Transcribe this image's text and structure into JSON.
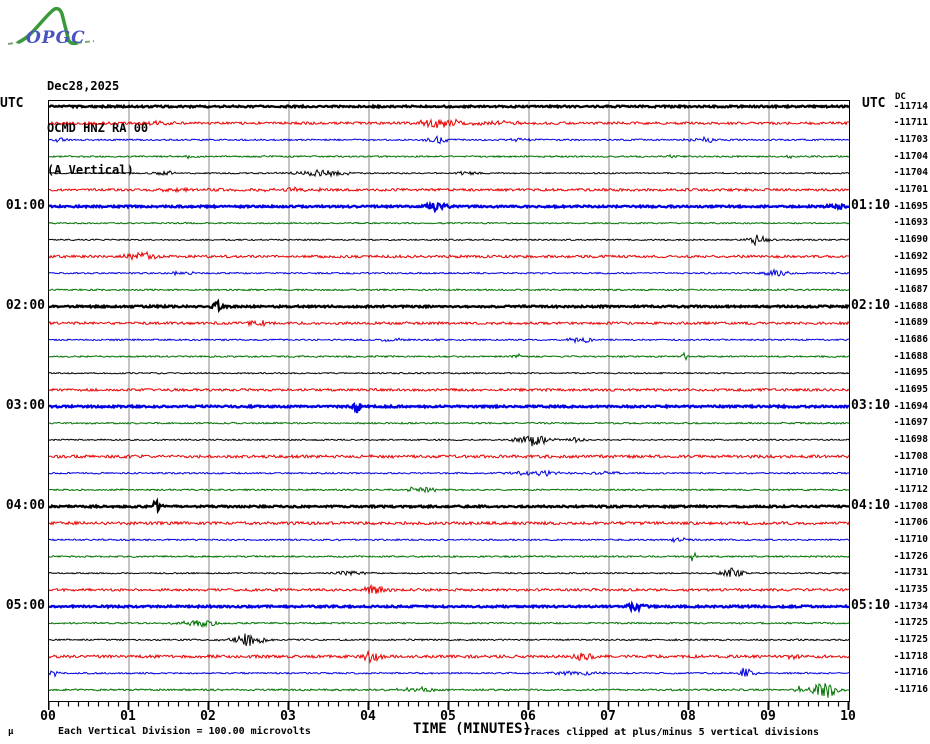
{
  "logo": {
    "text": "OPGC",
    "curve_color": "#3a9a3a",
    "text_color": "#4a52c0"
  },
  "header": {
    "date": "Dec28,2025",
    "station": "OCMD HNZ RA 00",
    "component": "(A Vertical)"
  },
  "labels": {
    "utc_left": "UTC",
    "utc_right": "UTC",
    "dc": "DC"
  },
  "footer": {
    "xlabel": "TIME (MINUTES)",
    "scale_note": "Each Vertical Division =  100.00 microvolts",
    "clip_note": "Traces clipped at plus/minus 5 vertical divisions",
    "mu": "μ"
  },
  "chart_data": {
    "type": "line",
    "title": "OPGC helicorder - OCMD HNZ RA 00 (A Vertical) Dec28,2025",
    "xlabel": "TIME (MINUTES)",
    "x_range": [
      0,
      10
    ],
    "x_tick_labels": [
      "00",
      "01",
      "02",
      "03",
      "04",
      "05",
      "06",
      "07",
      "08",
      "09",
      "10"
    ],
    "minutes_per_row": 10,
    "grid_color": "#878787",
    "palette": {
      "black": "#000000",
      "red": "#e80000",
      "blue": "#0000e0",
      "green": "#007200"
    },
    "rows": [
      {
        "utc": "",
        "utc_right": "",
        "color": "black",
        "dc": -11714,
        "bold": true,
        "noise": 0.9,
        "events": []
      },
      {
        "utc": "",
        "utc_right": "",
        "color": "red",
        "dc": -11711,
        "bold": false,
        "noise": 1.3,
        "events": [
          [
            1.35,
            2,
            0.3
          ],
          [
            4.9,
            5,
            0.35
          ],
          [
            5.6,
            2,
            0.5
          ]
        ]
      },
      {
        "utc": "",
        "utc_right": "",
        "color": "blue",
        "dc": -11703,
        "bold": false,
        "noise": 0.8,
        "events": [
          [
            0.15,
            2,
            0.12
          ],
          [
            4.85,
            4,
            0.2
          ],
          [
            5.9,
            1.5,
            0.3
          ],
          [
            8.2,
            2.5,
            0.25
          ]
        ]
      },
      {
        "utc": "",
        "utc_right": "",
        "color": "green",
        "dc": -11704,
        "bold": false,
        "noise": 0.8,
        "events": [
          [
            1.75,
            1.5,
            0.15
          ],
          [
            7.8,
            2,
            0.08
          ],
          [
            9.25,
            2,
            0.08
          ]
        ]
      },
      {
        "utc": "",
        "utc_right": "",
        "color": "black",
        "dc": -11704,
        "bold": false,
        "noise": 0.7,
        "events": [
          [
            1.45,
            2,
            0.2
          ],
          [
            3.4,
            3,
            0.5
          ],
          [
            5.2,
            1.5,
            0.3
          ]
        ]
      },
      {
        "utc": "",
        "utc_right": "",
        "color": "red",
        "dc": -11701,
        "bold": false,
        "noise": 1.3,
        "events": [
          [
            1.7,
            1.5,
            0.4
          ],
          [
            3.0,
            1.5,
            0.6
          ]
        ]
      },
      {
        "utc": "01:00",
        "utc_right": "01:10",
        "color": "blue",
        "dc": -11695,
        "bold": true,
        "noise": 0.9,
        "events": [
          [
            4.85,
            4,
            0.18
          ],
          [
            9.85,
            3.5,
            0.15
          ]
        ]
      },
      {
        "utc": "",
        "utc_right": "",
        "color": "green",
        "dc": -11693,
        "bold": false,
        "noise": 0.7,
        "events": []
      },
      {
        "utc": "",
        "utc_right": "",
        "color": "black",
        "dc": -11690,
        "bold": false,
        "noise": 0.7,
        "events": [
          [
            8.85,
            5,
            0.2
          ]
        ]
      },
      {
        "utc": "",
        "utc_right": "",
        "color": "red",
        "dc": -11692,
        "bold": false,
        "noise": 1.3,
        "events": [
          [
            1.15,
            4,
            0.25
          ]
        ]
      },
      {
        "utc": "",
        "utc_right": "",
        "color": "blue",
        "dc": -11695,
        "bold": false,
        "noise": 0.8,
        "events": [
          [
            1.65,
            3,
            0.2
          ],
          [
            9.1,
            3.5,
            0.2
          ]
        ]
      },
      {
        "utc": "",
        "utc_right": "",
        "color": "green",
        "dc": -11687,
        "bold": false,
        "noise": 0.8,
        "events": []
      },
      {
        "utc": "02:00",
        "utc_right": "02:10",
        "color": "black",
        "dc": -11688,
        "bold": true,
        "noise": 0.9,
        "events": [
          [
            2.1,
            5,
            0.15
          ]
        ]
      },
      {
        "utc": "",
        "utc_right": "",
        "color": "red",
        "dc": -11689,
        "bold": false,
        "noise": 1.3,
        "events": [
          [
            2.6,
            4,
            0.2
          ]
        ]
      },
      {
        "utc": "",
        "utc_right": "",
        "color": "blue",
        "dc": -11686,
        "bold": false,
        "noise": 0.8,
        "events": [
          [
            4.3,
            1.5,
            0.3
          ],
          [
            6.65,
            3,
            0.2
          ]
        ]
      },
      {
        "utc": "",
        "utc_right": "",
        "color": "green",
        "dc": -11688,
        "bold": false,
        "noise": 0.8,
        "events": [
          [
            5.85,
            4,
            0.06
          ],
          [
            7.95,
            4,
            0.06
          ]
        ]
      },
      {
        "utc": "",
        "utc_right": "",
        "color": "black",
        "dc": -11695,
        "bold": false,
        "noise": 0.7,
        "events": []
      },
      {
        "utc": "",
        "utc_right": "",
        "color": "red",
        "dc": -11695,
        "bold": false,
        "noise": 1.3,
        "events": []
      },
      {
        "utc": "03:00",
        "utc_right": "03:10",
        "color": "blue",
        "dc": -11694,
        "bold": true,
        "noise": 0.9,
        "events": [
          [
            3.85,
            8,
            0.06
          ]
        ]
      },
      {
        "utc": "",
        "utc_right": "",
        "color": "green",
        "dc": -11697,
        "bold": false,
        "noise": 0.8,
        "events": []
      },
      {
        "utc": "",
        "utc_right": "",
        "color": "black",
        "dc": -11698,
        "bold": false,
        "noise": 0.7,
        "events": [
          [
            6.05,
            6,
            0.3
          ],
          [
            6.6,
            3,
            0.15
          ]
        ]
      },
      {
        "utc": "",
        "utc_right": "",
        "color": "red",
        "dc": -11708,
        "bold": false,
        "noise": 1.5,
        "events": []
      },
      {
        "utc": "",
        "utc_right": "",
        "color": "blue",
        "dc": -11710,
        "bold": false,
        "noise": 0.8,
        "events": [
          [
            6.1,
            2.5,
            0.5
          ],
          [
            7.0,
            1.5,
            0.3
          ]
        ]
      },
      {
        "utc": "",
        "utc_right": "",
        "color": "green",
        "dc": -11712,
        "bold": false,
        "noise": 0.8,
        "events": [
          [
            4.65,
            3.5,
            0.3
          ]
        ]
      },
      {
        "utc": "04:00",
        "utc_right": "04:10",
        "color": "black",
        "dc": -11708,
        "bold": true,
        "noise": 0.9,
        "events": [
          [
            1.35,
            6,
            0.08
          ]
        ]
      },
      {
        "utc": "",
        "utc_right": "",
        "color": "red",
        "dc": -11706,
        "bold": false,
        "noise": 1.5,
        "events": []
      },
      {
        "utc": "",
        "utc_right": "",
        "color": "blue",
        "dc": -11710,
        "bold": false,
        "noise": 0.8,
        "events": [
          [
            7.9,
            3,
            0.15
          ]
        ]
      },
      {
        "utc": "",
        "utc_right": "",
        "color": "green",
        "dc": -11726,
        "bold": false,
        "noise": 0.8,
        "events": [
          [
            8.05,
            5,
            0.06
          ]
        ]
      },
      {
        "utc": "",
        "utc_right": "",
        "color": "black",
        "dc": -11731,
        "bold": false,
        "noise": 0.7,
        "events": [
          [
            3.8,
            2.5,
            0.3
          ],
          [
            8.55,
            6,
            0.2
          ]
        ]
      },
      {
        "utc": "",
        "utc_right": "",
        "color": "red",
        "dc": -11735,
        "bold": false,
        "noise": 1.3,
        "events": [
          [
            4.05,
            5,
            0.2
          ]
        ]
      },
      {
        "utc": "05:00",
        "utc_right": "05:10",
        "color": "blue",
        "dc": -11734,
        "bold": true,
        "noise": 0.9,
        "events": [
          [
            7.35,
            4.5,
            0.15
          ]
        ]
      },
      {
        "utc": "",
        "utc_right": "",
        "color": "green",
        "dc": -11725,
        "bold": false,
        "noise": 0.8,
        "events": [
          [
            1.9,
            3.5,
            0.35
          ]
        ]
      },
      {
        "utc": "",
        "utc_right": "",
        "color": "black",
        "dc": -11725,
        "bold": false,
        "noise": 0.8,
        "events": [
          [
            2.5,
            3.5,
            0.4
          ],
          [
            2.45,
            4,
            0.1
          ]
        ]
      },
      {
        "utc": "",
        "utc_right": "",
        "color": "red",
        "dc": -11718,
        "bold": false,
        "noise": 1.5,
        "events": [
          [
            4.05,
            6,
            0.15
          ],
          [
            6.7,
            4,
            0.2
          ],
          [
            9.3,
            2,
            0.1
          ]
        ]
      },
      {
        "utc": "",
        "utc_right": "",
        "color": "blue",
        "dc": -11716,
        "bold": false,
        "noise": 0.8,
        "events": [
          [
            0.05,
            4,
            0.08
          ],
          [
            6.6,
            2,
            0.4
          ],
          [
            8.7,
            5,
            0.15
          ]
        ]
      },
      {
        "utc": "",
        "utc_right": "",
        "color": "green",
        "dc": -11716,
        "bold": false,
        "noise": 0.9,
        "events": [
          [
            4.6,
            2.5,
            0.3
          ],
          [
            9.35,
            4,
            0.08
          ],
          [
            9.7,
            8,
            0.25
          ]
        ]
      }
    ]
  }
}
